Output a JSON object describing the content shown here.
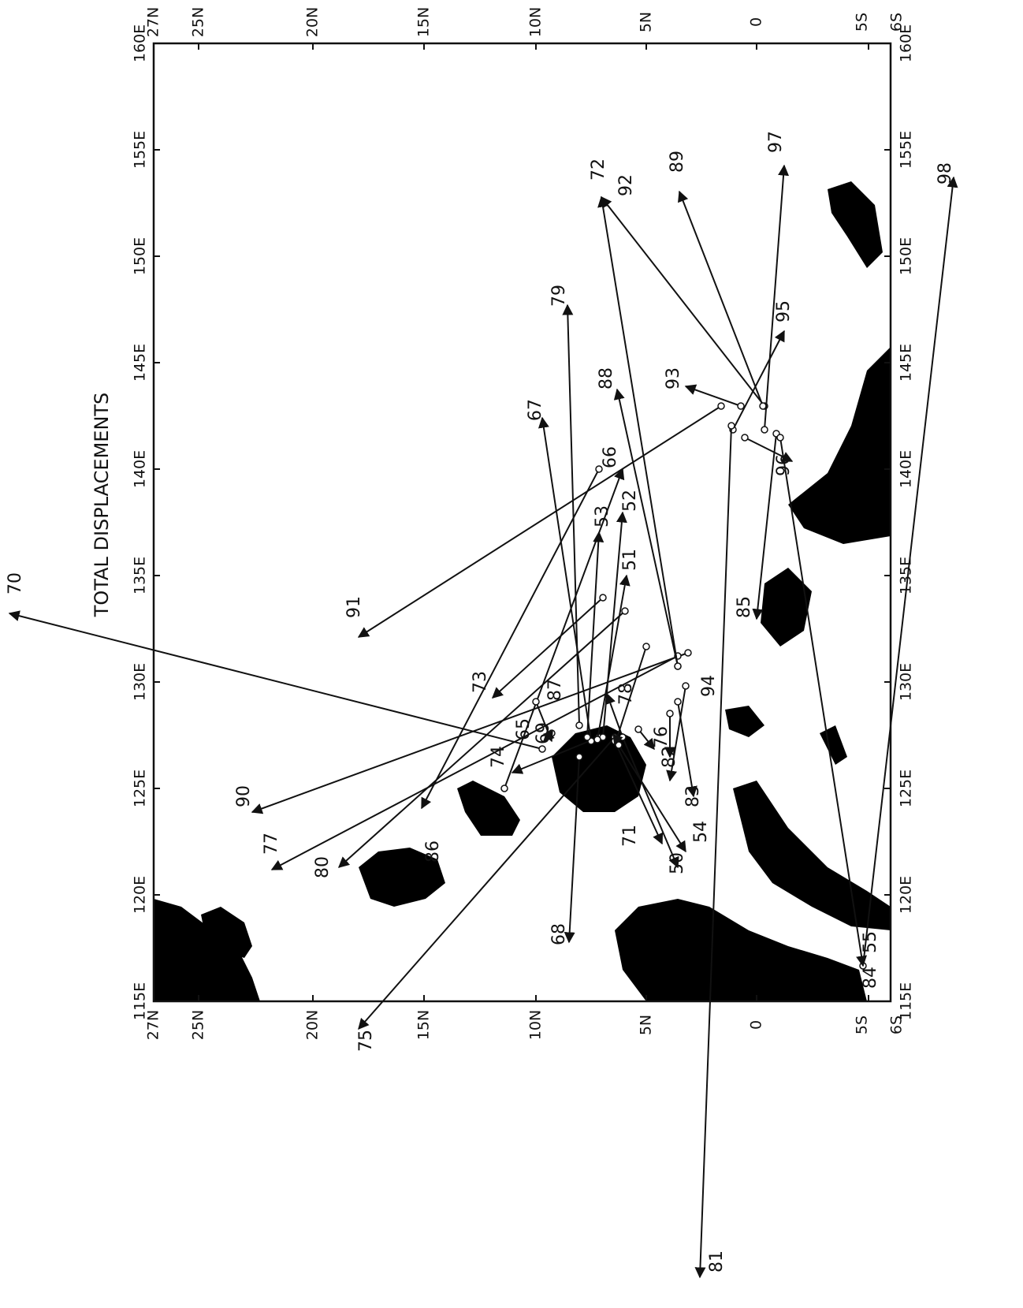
{
  "title": "TOTAL DISPLACEMENTS",
  "lon_labels": [
    "115E",
    "120E",
    "125E",
    "130E",
    "135E",
    "140E",
    "145E",
    "150E",
    "155E",
    "160E"
  ],
  "lat_labels": [
    "27N",
    "25N",
    "20N",
    "15N",
    "10N",
    "5N",
    "0",
    "5S",
    "6S"
  ],
  "drifters": [
    "70",
    "91",
    "73",
    "90",
    "77",
    "80",
    "75",
    "86",
    "74",
    "65",
    "69",
    "87",
    "68",
    "67",
    "79",
    "53",
    "52",
    "51",
    "66",
    "88",
    "72",
    "92",
    "89",
    "93",
    "97",
    "95",
    "96",
    "98",
    "85",
    "94",
    "83",
    "82",
    "76",
    "78",
    "71",
    "54",
    "50",
    "55",
    "84",
    "81"
  ]
}
